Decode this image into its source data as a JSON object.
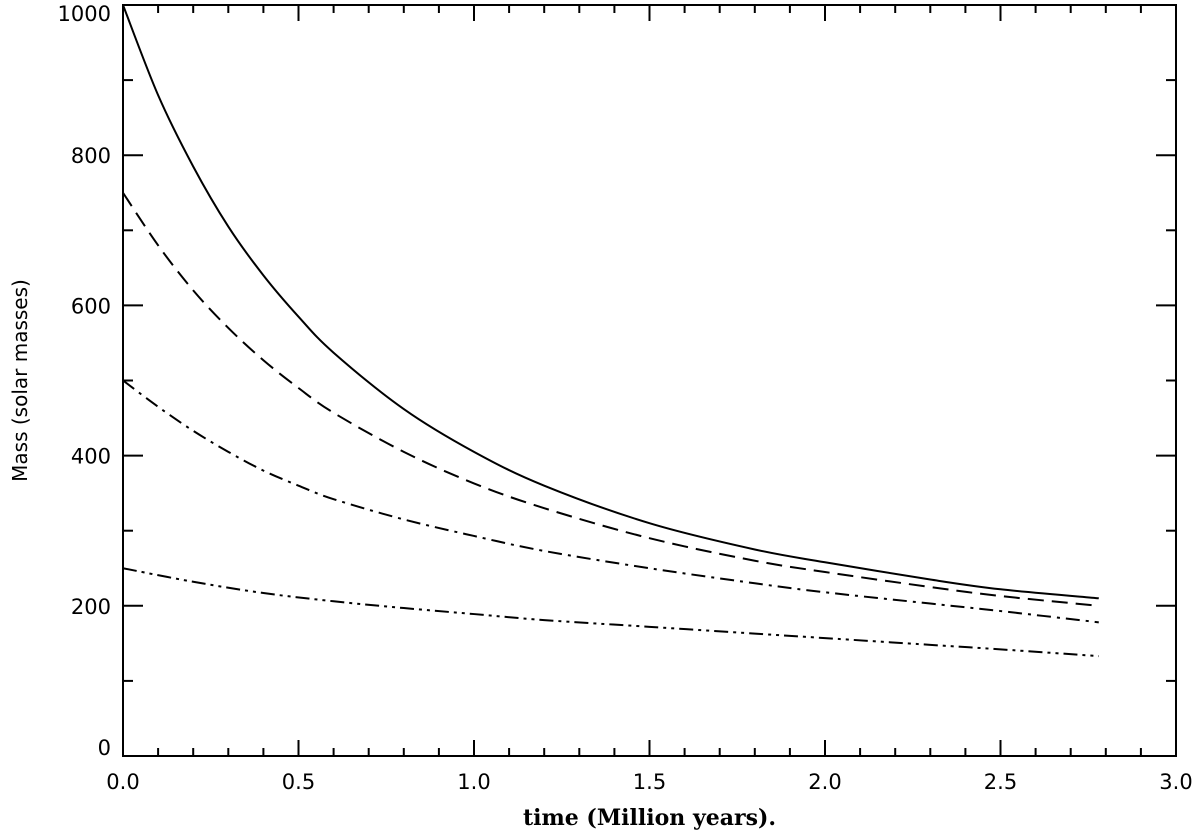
{
  "chart_data": {
    "type": "line",
    "title": "",
    "xlabel": "time (Million years).",
    "ylabel": "Mass (solar masses)",
    "xlim": [
      0.0,
      3.0
    ],
    "ylim": [
      0,
      1000
    ],
    "xticks": [
      "0.0",
      "0.5",
      "1.0",
      "1.5",
      "2.0",
      "2.5",
      "3.0"
    ],
    "yticks": [
      "0",
      "200",
      "400",
      "600",
      "800",
      "1000"
    ],
    "grid": false,
    "legend": "none",
    "series": [
      {
        "style": "solid",
        "x": [
          0.0,
          0.1,
          0.2,
          0.3,
          0.4,
          0.5,
          0.6,
          0.8,
          1.0,
          1.2,
          1.5,
          1.8,
          2.0,
          2.3,
          2.5,
          2.78
        ],
        "y": [
          1000,
          880,
          785,
          705,
          640,
          585,
          537,
          462,
          405,
          360,
          310,
          275,
          258,
          235,
          222,
          210
        ]
      },
      {
        "style": "dashed",
        "x": [
          0.0,
          0.1,
          0.2,
          0.3,
          0.4,
          0.5,
          0.6,
          0.8,
          1.0,
          1.2,
          1.5,
          1.8,
          2.0,
          2.3,
          2.5,
          2.78
        ],
        "y": [
          750,
          680,
          620,
          570,
          527,
          490,
          457,
          405,
          363,
          330,
          290,
          260,
          245,
          225,
          213,
          200
        ]
      },
      {
        "style": "dash-dot",
        "x": [
          0.0,
          0.1,
          0.2,
          0.3,
          0.4,
          0.5,
          0.6,
          0.8,
          1.0,
          1.2,
          1.5,
          1.8,
          2.0,
          2.3,
          2.5,
          2.78
        ],
        "y": [
          500,
          465,
          433,
          405,
          380,
          360,
          342,
          315,
          293,
          273,
          250,
          230,
          218,
          203,
          193,
          178
        ]
      },
      {
        "style": "dash-dot-dot",
        "x": [
          0.0,
          0.2,
          0.4,
          0.6,
          0.8,
          1.0,
          1.2,
          1.5,
          1.8,
          2.0,
          2.3,
          2.5,
          2.78
        ],
        "y": [
          250,
          232,
          217,
          206,
          197,
          189,
          181,
          172,
          163,
          157,
          148,
          142,
          133
        ]
      }
    ]
  }
}
